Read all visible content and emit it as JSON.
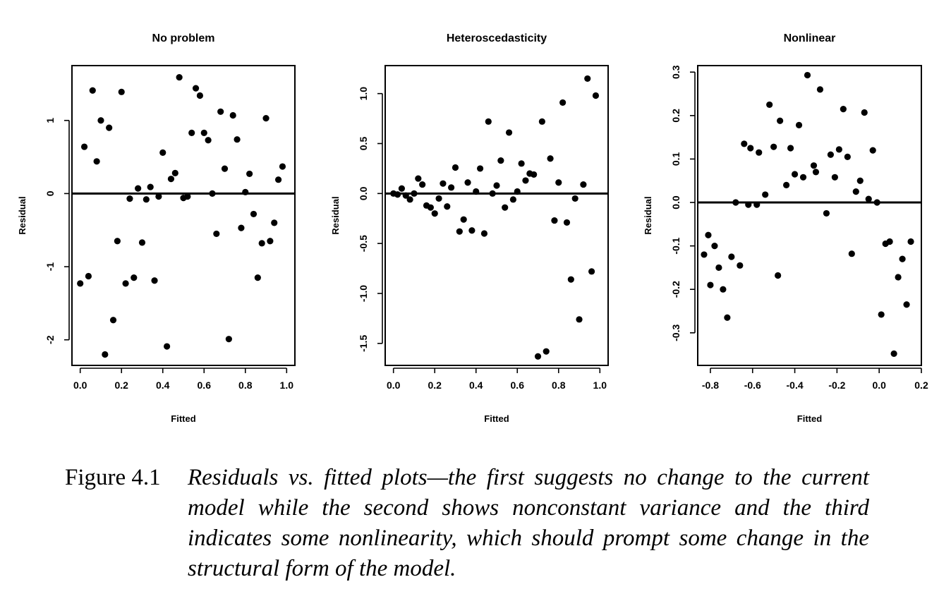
{
  "figure": {
    "caption_label": "Figure 4.1",
    "caption_text": "Residuals vs. fitted plots—the first suggests no change to the current model while the second shows nonconstant variance and the third indicates some nonlinearity, which should prompt some change in the structural form of the model."
  },
  "chart_data": [
    {
      "type": "scatter",
      "title": "No problem",
      "xlabel": "Fitted",
      "ylabel": "Residual",
      "xlim": [
        -0.04,
        1.04
      ],
      "ylim": [
        -2.35,
        1.75
      ],
      "xticks": [
        0.0,
        0.2,
        0.4,
        0.6,
        0.8,
        1.0
      ],
      "xtick_labels": [
        "0.0",
        "0.2",
        "0.4",
        "0.6",
        "0.8",
        "1.0"
      ],
      "yticks": [
        -2,
        -1,
        0,
        1
      ],
      "ytick_labels": [
        "-2",
        "-1",
        "0",
        "1"
      ],
      "hline": 0,
      "grid": false,
      "points": [
        [
          0.0,
          -1.23
        ],
        [
          0.02,
          0.64
        ],
        [
          0.04,
          -1.13
        ],
        [
          0.06,
          1.41
        ],
        [
          0.08,
          0.44
        ],
        [
          0.1,
          1.0
        ],
        [
          0.12,
          -2.2
        ],
        [
          0.14,
          0.9
        ],
        [
          0.16,
          -1.73
        ],
        [
          0.18,
          -0.65
        ],
        [
          0.2,
          1.39
        ],
        [
          0.22,
          -1.23
        ],
        [
          0.24,
          -0.07
        ],
        [
          0.26,
          -1.15
        ],
        [
          0.28,
          0.07
        ],
        [
          0.3,
          -0.67
        ],
        [
          0.32,
          -0.08
        ],
        [
          0.34,
          0.09
        ],
        [
          0.36,
          -1.19
        ],
        [
          0.38,
          -0.04
        ],
        [
          0.4,
          0.56
        ],
        [
          0.42,
          -2.09
        ],
        [
          0.44,
          0.2
        ],
        [
          0.46,
          0.28
        ],
        [
          0.48,
          1.59
        ],
        [
          0.5,
          -0.06
        ],
        [
          0.52,
          -0.04
        ],
        [
          0.54,
          0.83
        ],
        [
          0.56,
          1.44
        ],
        [
          0.58,
          1.34
        ],
        [
          0.6,
          0.83
        ],
        [
          0.62,
          0.73
        ],
        [
          0.64,
          0.0
        ],
        [
          0.66,
          -0.55
        ],
        [
          0.68,
          1.12
        ],
        [
          0.7,
          0.34
        ],
        [
          0.72,
          -1.99
        ],
        [
          0.74,
          1.07
        ],
        [
          0.76,
          0.74
        ],
        [
          0.78,
          -0.47
        ],
        [
          0.8,
          0.02
        ],
        [
          0.82,
          0.27
        ],
        [
          0.84,
          -0.28
        ],
        [
          0.86,
          -1.15
        ],
        [
          0.88,
          -0.68
        ],
        [
          0.9,
          1.03
        ],
        [
          0.92,
          -0.65
        ],
        [
          0.94,
          -0.4
        ],
        [
          0.96,
          0.19
        ],
        [
          0.98,
          0.37
        ]
      ]
    },
    {
      "type": "scatter",
      "title": "Heteroscedasticity",
      "xlabel": "Fitted",
      "ylabel": "Residual",
      "xlim": [
        -0.04,
        1.04
      ],
      "ylim": [
        -1.72,
        1.28
      ],
      "xticks": [
        0.0,
        0.2,
        0.4,
        0.6,
        0.8,
        1.0
      ],
      "xtick_labels": [
        "0.0",
        "0.2",
        "0.4",
        "0.6",
        "0.8",
        "1.0"
      ],
      "yticks": [
        -1.5,
        -1.0,
        -0.5,
        0.0,
        0.5,
        1.0
      ],
      "ytick_labels": [
        "-1.5",
        "-1.0",
        "-0.5",
        "0.0",
        "0.5",
        "1.0"
      ],
      "hline": 0,
      "grid": false,
      "points": [
        [
          0.0,
          0.0
        ],
        [
          0.02,
          -0.01
        ],
        [
          0.04,
          0.05
        ],
        [
          0.06,
          -0.02
        ],
        [
          0.08,
          -0.06
        ],
        [
          0.1,
          0.0
        ],
        [
          0.12,
          0.15
        ],
        [
          0.14,
          0.09
        ],
        [
          0.16,
          -0.12
        ],
        [
          0.18,
          -0.14
        ],
        [
          0.2,
          -0.2
        ],
        [
          0.22,
          -0.05
        ],
        [
          0.24,
          0.1
        ],
        [
          0.26,
          -0.13
        ],
        [
          0.28,
          0.06
        ],
        [
          0.3,
          0.26
        ],
        [
          0.32,
          -0.38
        ],
        [
          0.34,
          -0.26
        ],
        [
          0.36,
          0.11
        ],
        [
          0.38,
          -0.37
        ],
        [
          0.4,
          0.02
        ],
        [
          0.42,
          0.25
        ],
        [
          0.44,
          -0.4
        ],
        [
          0.46,
          0.72
        ],
        [
          0.48,
          0.0
        ],
        [
          0.5,
          0.08
        ],
        [
          0.52,
          0.33
        ],
        [
          0.54,
          -0.14
        ],
        [
          0.56,
          0.61
        ],
        [
          0.58,
          -0.06
        ],
        [
          0.6,
          0.02
        ],
        [
          0.62,
          0.3
        ],
        [
          0.64,
          0.13
        ],
        [
          0.66,
          0.2
        ],
        [
          0.68,
          0.19
        ],
        [
          0.7,
          -1.63
        ],
        [
          0.72,
          0.72
        ],
        [
          0.74,
          -1.58
        ],
        [
          0.76,
          0.35
        ],
        [
          0.78,
          -0.27
        ],
        [
          0.8,
          0.11
        ],
        [
          0.82,
          0.91
        ],
        [
          0.84,
          -0.29
        ],
        [
          0.86,
          -0.86
        ],
        [
          0.88,
          -0.05
        ],
        [
          0.9,
          -1.26
        ],
        [
          0.92,
          0.09
        ],
        [
          0.94,
          1.15
        ],
        [
          0.96,
          -0.78
        ],
        [
          0.98,
          0.98
        ]
      ]
    },
    {
      "type": "scatter",
      "title": "Nonlinear",
      "xlabel": "Fitted",
      "ylabel": "Residual",
      "xlim": [
        -0.86,
        0.2
      ],
      "ylim": [
        -0.375,
        0.315
      ],
      "xticks": [
        -0.8,
        -0.6,
        -0.4,
        -0.2,
        0.0,
        0.2
      ],
      "xtick_labels": [
        "-0.8",
        "-0.6",
        "-0.4",
        "-0.2",
        "0.0",
        "0.2"
      ],
      "yticks": [
        -0.3,
        -0.2,
        -0.1,
        0.0,
        0.1,
        0.2,
        0.3
      ],
      "ytick_labels": [
        "-0.3",
        "-0.2",
        "-0.1",
        "0.0",
        "0.1",
        "0.2",
        "0.3"
      ],
      "hline": 0,
      "grid": false,
      "points": [
        [
          -0.83,
          -0.12
        ],
        [
          -0.81,
          -0.075
        ],
        [
          -0.8,
          -0.19
        ],
        [
          -0.78,
          -0.1
        ],
        [
          -0.76,
          -0.15
        ],
        [
          -0.74,
          -0.2
        ],
        [
          -0.72,
          -0.265
        ],
        [
          -0.7,
          -0.125
        ],
        [
          -0.68,
          0.0
        ],
        [
          -0.66,
          -0.145
        ],
        [
          -0.64,
          0.135
        ],
        [
          -0.62,
          -0.005
        ],
        [
          -0.61,
          0.125
        ],
        [
          -0.58,
          -0.005
        ],
        [
          -0.57,
          0.115
        ],
        [
          -0.54,
          0.018
        ],
        [
          -0.52,
          0.225
        ],
        [
          -0.5,
          0.128
        ],
        [
          -0.48,
          -0.168
        ],
        [
          -0.47,
          0.188
        ],
        [
          -0.44,
          0.04
        ],
        [
          -0.42,
          0.125
        ],
        [
          -0.4,
          0.065
        ],
        [
          -0.38,
          0.178
        ],
        [
          -0.36,
          0.058
        ],
        [
          -0.34,
          0.293
        ],
        [
          -0.31,
          0.085
        ],
        [
          -0.3,
          0.07
        ],
        [
          -0.28,
          0.26
        ],
        [
          -0.25,
          -0.025
        ],
        [
          -0.23,
          0.11
        ],
        [
          -0.21,
          0.058
        ],
        [
          -0.19,
          0.122
        ],
        [
          -0.17,
          0.215
        ],
        [
          -0.15,
          0.105
        ],
        [
          -0.13,
          -0.118
        ],
        [
          -0.11,
          0.025
        ],
        [
          -0.09,
          0.05
        ],
        [
          -0.07,
          0.207
        ],
        [
          -0.05,
          0.008
        ],
        [
          -0.03,
          0.12
        ],
        [
          -0.01,
          0.0
        ],
        [
          0.01,
          -0.258
        ],
        [
          0.03,
          -0.095
        ],
        [
          0.05,
          -0.09
        ],
        [
          0.07,
          -0.348
        ],
        [
          0.09,
          -0.172
        ],
        [
          0.11,
          -0.13
        ],
        [
          0.13,
          -0.235
        ],
        [
          0.15,
          -0.09
        ]
      ]
    }
  ]
}
